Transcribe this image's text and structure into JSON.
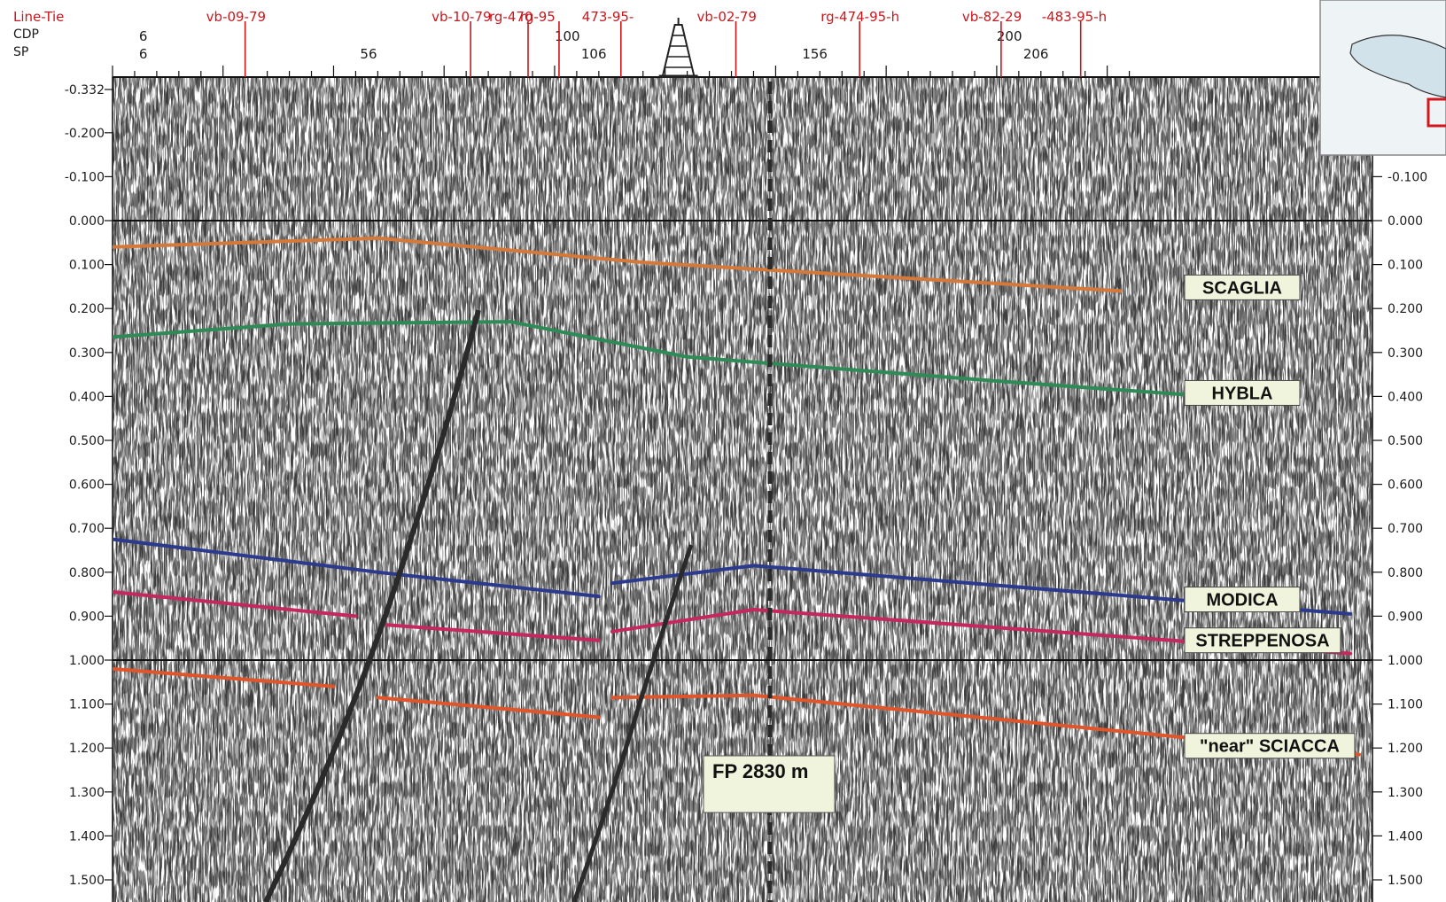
{
  "header": {
    "line_tie_label": "Line-Tie",
    "cdp_label": "CDP",
    "sp_label": "SP",
    "cdp_ticks": [
      {
        "label": "6",
        "cdp": 6
      },
      {
        "label": "100",
        "cdp": 100
      },
      {
        "label": "200",
        "cdp": 200
      }
    ],
    "sp_ticks": [
      {
        "label": "6",
        "cdp": 6
      },
      {
        "label": "56",
        "cdp": 56
      },
      {
        "label": "106",
        "cdp": 106
      },
      {
        "label": "156",
        "cdp": 156
      },
      {
        "label": "206",
        "cdp": 206
      }
    ],
    "line_ties": [
      {
        "label": "vb-09-79",
        "cdp": 30
      },
      {
        "label": "vb-10-79",
        "cdp": 81
      },
      {
        "label": "rg-470",
        "cdp": 94
      },
      {
        "label": "rg-95",
        "cdp": 101
      },
      {
        "label": "473-95-",
        "cdp": 115
      },
      {
        "label": "vb-02-79",
        "cdp": 141
      },
      {
        "label": "rg-474-95-h",
        "cdp": 169
      },
      {
        "label": "vb-82-29",
        "cdp": 201
      },
      {
        "label": "-483-95-h",
        "cdp": 219
      }
    ],
    "well_cdp": 128
  },
  "left_axis_labels": [
    "-0.332",
    "-0.200",
    "-0.100",
    "0.000",
    "0.100",
    "0.200",
    "0.300",
    "0.400",
    "0.500",
    "0.600",
    "0.700",
    "0.800",
    "0.900",
    "1.000",
    "1.100",
    "1.200",
    "1.300",
    "1.400",
    "1.500"
  ],
  "right_axis_labels": [
    "-0.100",
    "0.000",
    "0.100",
    "0.200",
    "0.300",
    "0.400",
    "0.500",
    "0.600",
    "0.700",
    "0.800",
    "0.900",
    "1.000",
    "1.100",
    "1.200",
    "1.300",
    "1.400",
    "1.500"
  ],
  "horizons": [
    {
      "name": "SCAGLIA",
      "color": "#d4793a",
      "segments": [
        [
          [
            0,
            0.06
          ],
          [
            60,
            0.04
          ],
          [
            120,
            0.095
          ],
          [
            228,
            0.16
          ]
        ]
      ]
    },
    {
      "name": "HYBLA",
      "color": "#2e8b57",
      "segments": [
        [
          [
            0,
            0.265
          ],
          [
            40,
            0.235
          ],
          [
            90,
            0.23
          ],
          [
            130,
            0.31
          ],
          [
            200,
            0.365
          ],
          [
            255,
            0.405
          ]
        ]
      ]
    },
    {
      "name": "MODICA",
      "color": "#2b3a8c",
      "segments": [
        [
          [
            0,
            0.725
          ],
          [
            60,
            0.8
          ],
          [
            110,
            0.855
          ]
        ],
        [
          [
            113,
            0.825
          ],
          [
            145,
            0.785
          ],
          [
            280,
            0.895
          ]
        ]
      ]
    },
    {
      "name": "STREPPENOSA",
      "color": "#c4285e",
      "segments": [
        [
          [
            0,
            0.845
          ],
          [
            55,
            0.9
          ]
        ],
        [
          [
            62,
            0.92
          ],
          [
            110,
            0.955
          ]
        ],
        [
          [
            113,
            0.935
          ],
          [
            145,
            0.885
          ],
          [
            280,
            0.985
          ]
        ]
      ]
    },
    {
      "name": "\"near\" SCIACCA",
      "color": "#e0552a",
      "segments": [
        [
          [
            0,
            1.02
          ],
          [
            50,
            1.06
          ]
        ],
        [
          [
            60,
            1.085
          ],
          [
            110,
            1.13
          ]
        ],
        [
          [
            113,
            1.085
          ],
          [
            145,
            1.08
          ],
          [
            282,
            1.215
          ]
        ]
      ]
    }
  ],
  "well_label": "FP 2830 m",
  "colors": {
    "tie": "#c8181e",
    "fault": "#2a2a2a",
    "trace": "#1a1a1a",
    "label_box": "#f1f4dc",
    "inset_land": "#cfe0e6"
  },
  "inset_map": {
    "description_icon": "location-inset-map-icon"
  }
}
